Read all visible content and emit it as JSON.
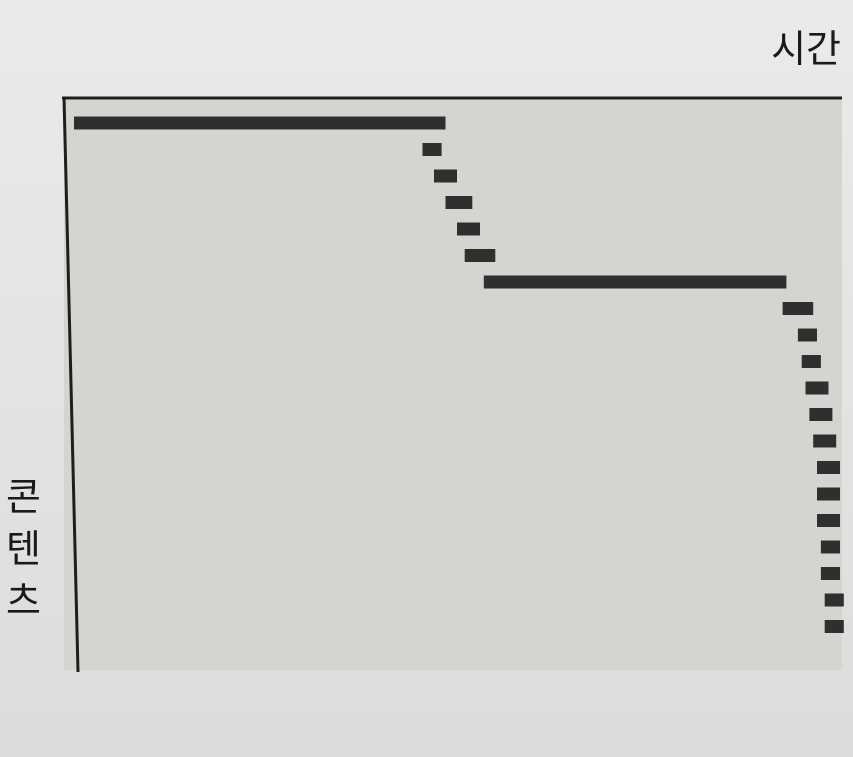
{
  "chart_data": {
    "type": "timeline",
    "title": "",
    "xlabel": "시간",
    "ylabel": "콘텐츠",
    "ylabel_chars": [
      "콘",
      "텐",
      "츠"
    ],
    "xlim": [
      0,
      100
    ],
    "ylim": [
      0,
      28
    ],
    "grid": false,
    "legend": "none",
    "colors": {
      "plot_bg": "#d4d4d1",
      "bar": "#2f2f2f",
      "axis": "#1e1e1e"
    },
    "bars": [
      {
        "row": 1,
        "start": 0.0,
        "end": 48.5
      },
      {
        "row": 2,
        "start": 45.5,
        "end": 48.0
      },
      {
        "row": 3,
        "start": 47.0,
        "end": 50.0
      },
      {
        "row": 4,
        "start": 48.5,
        "end": 52.0
      },
      {
        "row": 5,
        "start": 50.0,
        "end": 53.0
      },
      {
        "row": 6,
        "start": 51.0,
        "end": 55.0
      },
      {
        "row": 7,
        "start": 53.5,
        "end": 93.0
      },
      {
        "row": 8,
        "start": 92.5,
        "end": 96.5
      },
      {
        "row": 9,
        "start": 94.5,
        "end": 97.0
      },
      {
        "row": 10,
        "start": 95.0,
        "end": 97.5
      },
      {
        "row": 11,
        "start": 95.5,
        "end": 98.5
      },
      {
        "row": 12,
        "start": 96.0,
        "end": 99.0
      },
      {
        "row": 13,
        "start": 96.5,
        "end": 99.5
      },
      {
        "row": 14,
        "start": 97.0,
        "end": 100.0
      },
      {
        "row": 15,
        "start": 97.0,
        "end": 100.0
      },
      {
        "row": 16,
        "start": 97.0,
        "end": 100.0
      },
      {
        "row": 17,
        "start": 97.5,
        "end": 100.0
      },
      {
        "row": 18,
        "start": 97.5,
        "end": 100.0
      },
      {
        "row": 19,
        "start": 98.0,
        "end": 100.5
      },
      {
        "row": 20,
        "start": 98.0,
        "end": 100.5
      }
    ]
  }
}
